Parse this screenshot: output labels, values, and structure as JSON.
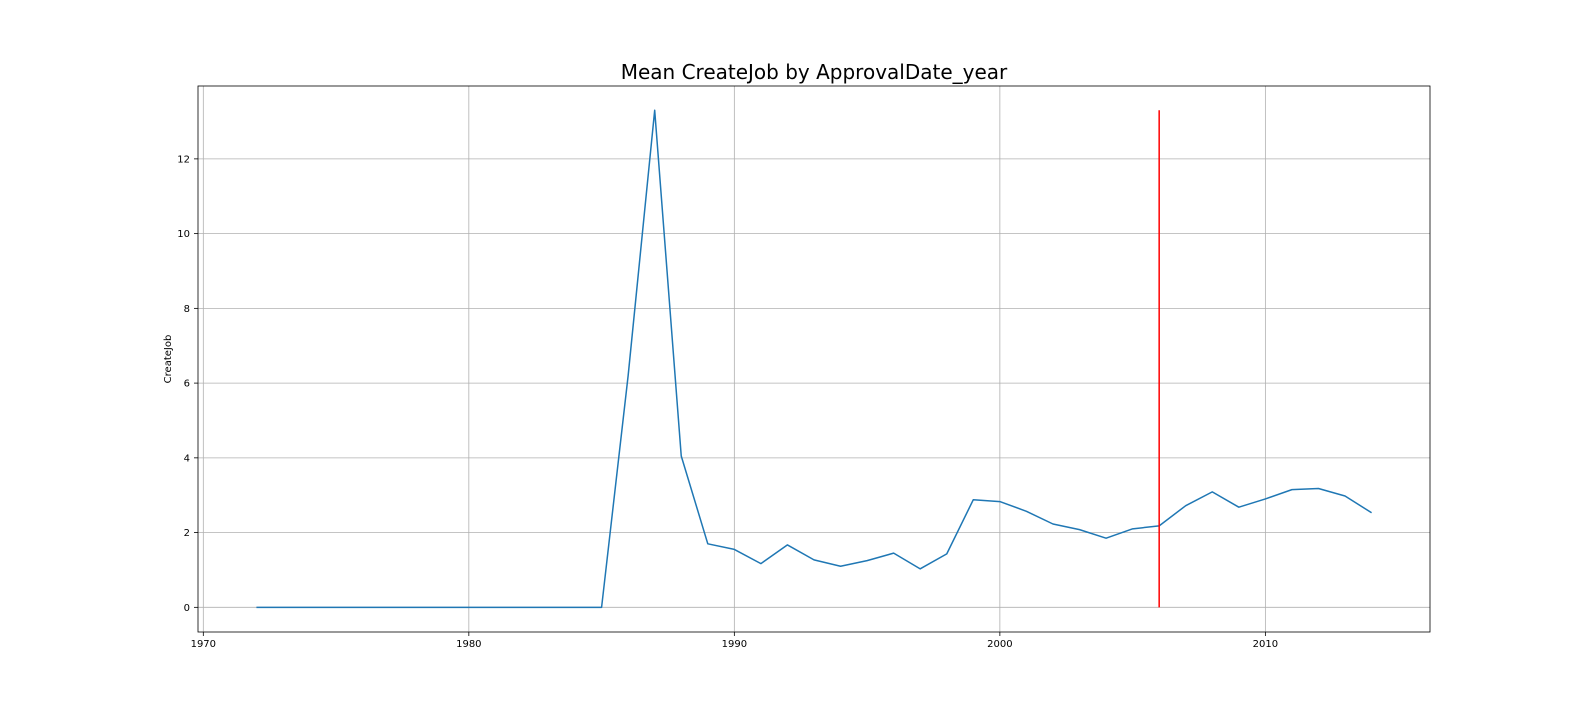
{
  "chart_data": {
    "type": "line",
    "title": "Mean CreateJob by ApprovalDate_year",
    "xlabel": "",
    "ylabel": "CreateJob",
    "xlim": [
      1969.8,
      2016.2
    ],
    "ylim": [
      -0.66,
      13.95
    ],
    "xticks": [
      1970,
      1980,
      1990,
      2000,
      2010
    ],
    "yticks": [
      0,
      2,
      4,
      6,
      8,
      10,
      12
    ],
    "grid": true,
    "series": [
      {
        "color": "#1f77b4",
        "x": [
          1972,
          1973,
          1974,
          1975,
          1976,
          1977,
          1978,
          1979,
          1980,
          1981,
          1982,
          1983,
          1984,
          1985,
          1986,
          1987,
          1988,
          1989,
          1990,
          1991,
          1992,
          1993,
          1994,
          1995,
          1996,
          1997,
          1998,
          1999,
          2000,
          2001,
          2002,
          2003,
          2004,
          2005,
          2006,
          2007,
          2008,
          2009,
          2010,
          2011,
          2012,
          2013,
          2014
        ],
        "values": [
          0,
          0,
          0,
          0,
          0,
          0,
          0,
          0,
          0,
          0,
          0,
          0,
          0,
          0,
          6.2,
          13.3,
          4.05,
          1.7,
          1.55,
          1.17,
          1.67,
          1.27,
          1.1,
          1.25,
          1.45,
          1.03,
          1.43,
          2.88,
          2.83,
          2.57,
          2.23,
          2.08,
          1.85,
          2.1,
          2.18,
          2.72,
          3.09,
          2.68,
          2.9,
          3.15,
          3.18,
          2.98,
          2.53
        ]
      }
    ],
    "annotations": [
      {
        "type": "vline",
        "x": 2006,
        "ymin": 0,
        "ymax": 13.3,
        "color": "#ff0000"
      }
    ]
  }
}
